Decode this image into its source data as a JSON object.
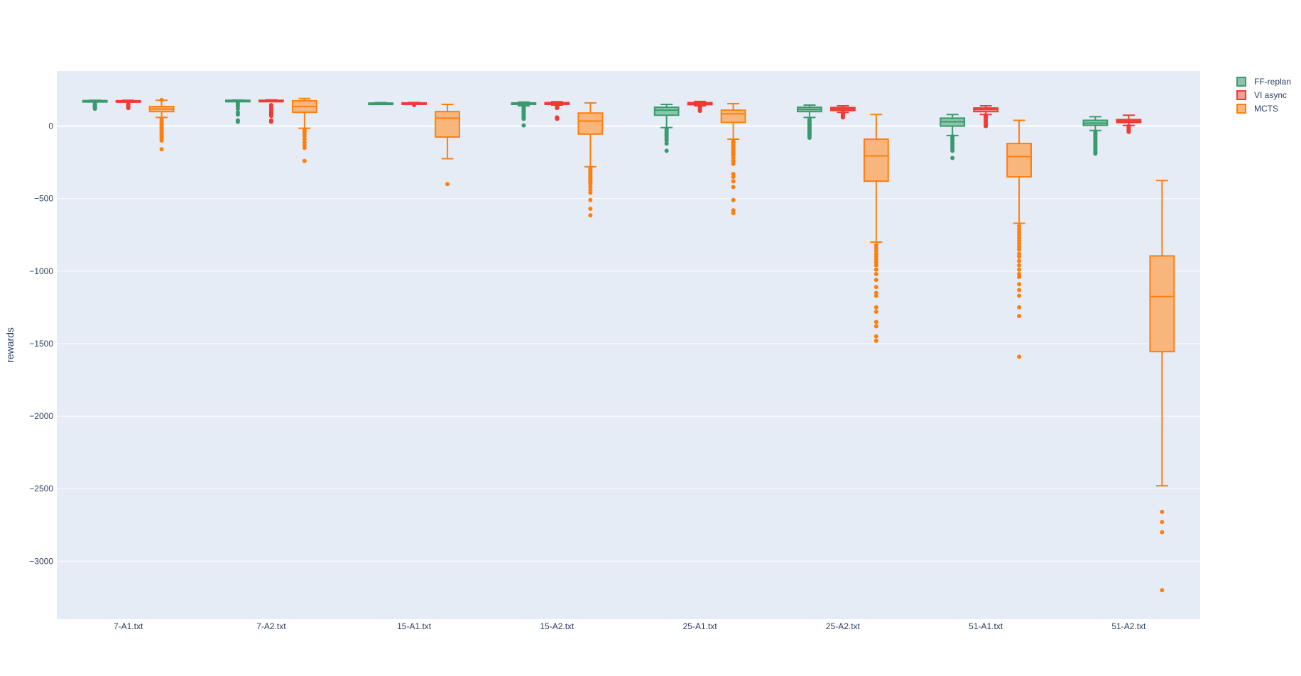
{
  "chart_data": {
    "type": "box",
    "title": "",
    "xlabel": "",
    "ylabel": "rewards",
    "ylim": [
      -3400,
      380
    ],
    "y_ticks": [
      0,
      -500,
      -1000,
      -1500,
      -2000,
      -2500,
      -3000
    ],
    "y_tick_labels": [
      "0",
      "−500",
      "−1000",
      "−1500",
      "−2000",
      "−2500",
      "−3000"
    ],
    "grid": true,
    "legend_position": "top-right",
    "categories": [
      "7-A1.txt",
      "7-A2.txt",
      "15-A1.txt",
      "15-A2.txt",
      "25-A1.txt",
      "25-A2.txt",
      "51-A1.txt",
      "51-A2.txt"
    ],
    "series": [
      {
        "name": "FF-replan",
        "color": "#3a9a6f",
        "fill": "#8cc4a8",
        "boxes": [
          {
            "lowerfence": 170,
            "q1": 172,
            "median": 174,
            "q3": 176,
            "upperfence": 178,
            "outliers": [
              165,
              160,
              155,
              150,
              145,
              140,
              135,
              130,
              125,
              120
            ]
          },
          {
            "lowerfence": 172,
            "q1": 174,
            "median": 176,
            "q3": 178,
            "upperfence": 180,
            "outliers": [
              160,
              145,
              135,
              120,
              95,
              80,
              40,
              30
            ]
          },
          {
            "lowerfence": 150,
            "q1": 153,
            "median": 156,
            "q3": 159,
            "upperfence": 162,
            "outliers": []
          },
          {
            "lowerfence": 140,
            "q1": 150,
            "median": 155,
            "q3": 160,
            "upperfence": 166,
            "outliers": [
              135,
              130,
              120,
              110,
              100,
              90,
              80,
              70,
              60,
              50,
              5
            ]
          },
          {
            "lowerfence": -10,
            "q1": 75,
            "median": 110,
            "q3": 130,
            "upperfence": 150,
            "outliers": [
              -20,
              -30,
              -40,
              -50,
              -60,
              -70,
              -80,
              -90,
              -100,
              -120,
              -170
            ]
          },
          {
            "lowerfence": 60,
            "q1": 100,
            "median": 115,
            "q3": 130,
            "upperfence": 145,
            "outliers": [
              50,
              40,
              30,
              20,
              10,
              0,
              -10,
              -20,
              -30,
              -40,
              -50,
              -60,
              -70,
              -80
            ]
          },
          {
            "lowerfence": -65,
            "q1": 0,
            "median": 30,
            "q3": 55,
            "upperfence": 80,
            "outliers": [
              -70,
              -80,
              -90,
              -100,
              -110,
              -120,
              -130,
              -140,
              -150,
              -160,
              -170,
              -220
            ]
          },
          {
            "lowerfence": -30,
            "q1": 5,
            "median": 20,
            "q3": 40,
            "upperfence": 65,
            "outliers": [
              -40,
              -50,
              -60,
              -70,
              -80,
              -90,
              -100,
              -110,
              -120,
              -130,
              -140,
              -150,
              -160,
              -170,
              -180,
              -190
            ]
          }
        ]
      },
      {
        "name": "VI async",
        "color": "#f23a33",
        "fill": "#f79b97",
        "boxes": [
          {
            "lowerfence": 165,
            "q1": 168,
            "median": 172,
            "q3": 175,
            "upperfence": 178,
            "outliers": [
              150,
              145,
              140,
              135,
              130,
              125
            ]
          },
          {
            "lowerfence": 170,
            "q1": 173,
            "median": 176,
            "q3": 178,
            "upperfence": 181,
            "outliers": [
              145,
              140,
              130,
              120,
              110,
              100,
              90,
              80,
              70,
              40,
              30
            ]
          },
          {
            "lowerfence": 152,
            "q1": 155,
            "median": 158,
            "q3": 160,
            "upperfence": 163,
            "outliers": [
              150,
              145
            ]
          },
          {
            "lowerfence": 145,
            "q1": 150,
            "median": 155,
            "q3": 162,
            "upperfence": 168,
            "outliers": [
              140,
              135,
              130,
              125,
              60,
              50
            ]
          },
          {
            "lowerfence": 140,
            "q1": 148,
            "median": 155,
            "q3": 162,
            "upperfence": 170,
            "outliers": [
              135,
              125,
              115,
              105
            ]
          },
          {
            "lowerfence": 95,
            "q1": 108,
            "median": 118,
            "q3": 128,
            "upperfence": 140,
            "outliers": [
              90,
              85,
              80,
              75,
              70,
              65,
              60
            ]
          },
          {
            "lowerfence": 80,
            "q1": 100,
            "median": 115,
            "q3": 125,
            "upperfence": 140,
            "outliers": [
              75,
              70,
              60,
              50,
              40,
              30,
              20,
              10,
              0
            ]
          },
          {
            "lowerfence": 5,
            "q1": 25,
            "median": 35,
            "q3": 45,
            "upperfence": 75,
            "outliers": [
              0,
              -10,
              -20,
              -30,
              -40
            ]
          }
        ]
      },
      {
        "name": "MCTS",
        "color": "#ff7f0e",
        "fill": "#f8b67c",
        "boxes": [
          {
            "lowerfence": 60,
            "q1": 100,
            "median": 118,
            "q3": 135,
            "upperfence": 178,
            "outliers": [
              180,
              50,
              40,
              30,
              20,
              10,
              0,
              -10,
              -20,
              -30,
              -40,
              -50,
              -60,
              -70,
              -80,
              -90,
              -100,
              -160
            ]
          },
          {
            "lowerfence": -15,
            "q1": 95,
            "median": 135,
            "q3": 175,
            "upperfence": 190,
            "outliers": [
              -25,
              -40,
              -55,
              -70,
              -90,
              -110,
              -130,
              -150,
              -240
            ]
          },
          {
            "lowerfence": -225,
            "q1": -75,
            "median": 55,
            "q3": 100,
            "upperfence": 150,
            "outliers": [
              -400
            ]
          },
          {
            "lowerfence": -280,
            "q1": -55,
            "median": 35,
            "q3": 90,
            "upperfence": 160,
            "outliers": [
              -290,
              -300,
              -310,
              -320,
              -330,
              -340,
              -350,
              -360,
              -370,
              -380,
              -390,
              -400,
              -420,
              -440,
              -460,
              -510,
              -570,
              -615
            ]
          },
          {
            "lowerfence": -90,
            "q1": 25,
            "median": 85,
            "q3": 110,
            "upperfence": 155,
            "outliers": [
              -100,
              -110,
              -120,
              -130,
              -140,
              -150,
              -160,
              -170,
              -180,
              -190,
              -200,
              -220,
              -240,
              -260,
              -330,
              -350,
              -380,
              -420,
              -510,
              -580,
              -600
            ]
          },
          {
            "lowerfence": -800,
            "q1": -380,
            "median": -205,
            "q3": -90,
            "upperfence": 80,
            "outliers": [
              -820,
              -840,
              -860,
              -880,
              -900,
              -920,
              -940,
              -960,
              -990,
              -1020,
              -1060,
              -1110,
              -1150,
              -1170,
              -1250,
              -1280,
              -1350,
              -1380,
              -1450,
              -1480
            ]
          },
          {
            "lowerfence": -670,
            "q1": -350,
            "median": -210,
            "q3": -120,
            "upperfence": 40,
            "outliers": [
              -690,
              -710,
              -730,
              -750,
              -770,
              -790,
              -810,
              -830,
              -850,
              -880,
              -900,
              -930,
              -960,
              -990,
              -1020,
              -1040,
              -1090,
              -1130,
              -1170,
              -1250,
              -1310,
              -1590
            ]
          },
          {
            "lowerfence": -2480,
            "q1": -1555,
            "median": -1175,
            "q3": -895,
            "upperfence": -375,
            "outliers": [
              -2660,
              -2730,
              -2800,
              -3200
            ]
          }
        ]
      }
    ]
  }
}
